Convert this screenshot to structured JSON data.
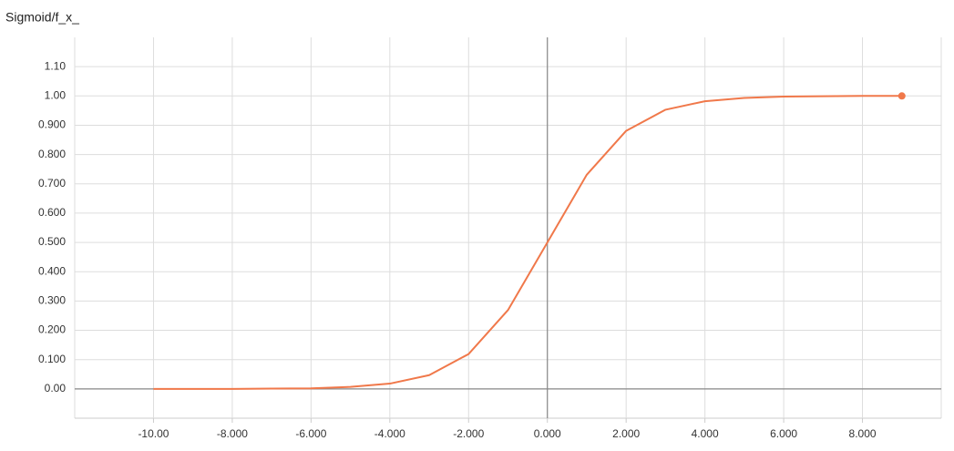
{
  "chart_data": {
    "type": "line",
    "title": "Sigmoid/f_x_",
    "x": [
      -10,
      -9,
      -8,
      -7,
      -6,
      -5,
      -4,
      -3,
      -2,
      -1,
      0,
      1,
      2,
      3,
      4,
      5,
      6,
      7,
      8,
      9
    ],
    "values": [
      0.0,
      0.0,
      0.0,
      0.001,
      0.002,
      0.007,
      0.018,
      0.047,
      0.119,
      0.269,
      0.5,
      0.731,
      0.881,
      0.953,
      0.982,
      0.993,
      0.998,
      0.999,
      1.0,
      1.0
    ],
    "color": "#f0784a",
    "xlim": [
      -12,
      10
    ],
    "xticks": [
      {
        "value": -10,
        "label": "-10.00"
      },
      {
        "value": -8,
        "label": "-8.000"
      },
      {
        "value": -6,
        "label": "-6.000"
      },
      {
        "value": -4,
        "label": "-4.000"
      },
      {
        "value": -2,
        "label": "-2.000"
      },
      {
        "value": 0,
        "label": "0.000"
      },
      {
        "value": 2,
        "label": "2.000"
      },
      {
        "value": 4,
        "label": "4.000"
      },
      {
        "value": 6,
        "label": "6.000"
      },
      {
        "value": 8,
        "label": "8.000"
      }
    ],
    "ylim": [
      -0.1,
      1.2
    ],
    "yticks": [
      {
        "value": 0,
        "label": "0.00"
      },
      {
        "value": 0.1,
        "label": "0.100"
      },
      {
        "value": 0.2,
        "label": "0.200"
      },
      {
        "value": 0.3,
        "label": "0.300"
      },
      {
        "value": 0.4,
        "label": "0.400"
      },
      {
        "value": 0.5,
        "label": "0.500"
      },
      {
        "value": 0.6,
        "label": "0.600"
      },
      {
        "value": 0.7,
        "label": "0.700"
      },
      {
        "value": 0.8,
        "label": "0.800"
      },
      {
        "value": 0.9,
        "label": "0.900"
      },
      {
        "value": 1.0,
        "label": "1.00"
      },
      {
        "value": 1.1,
        "label": "1.10"
      }
    ],
    "grid": true
  }
}
